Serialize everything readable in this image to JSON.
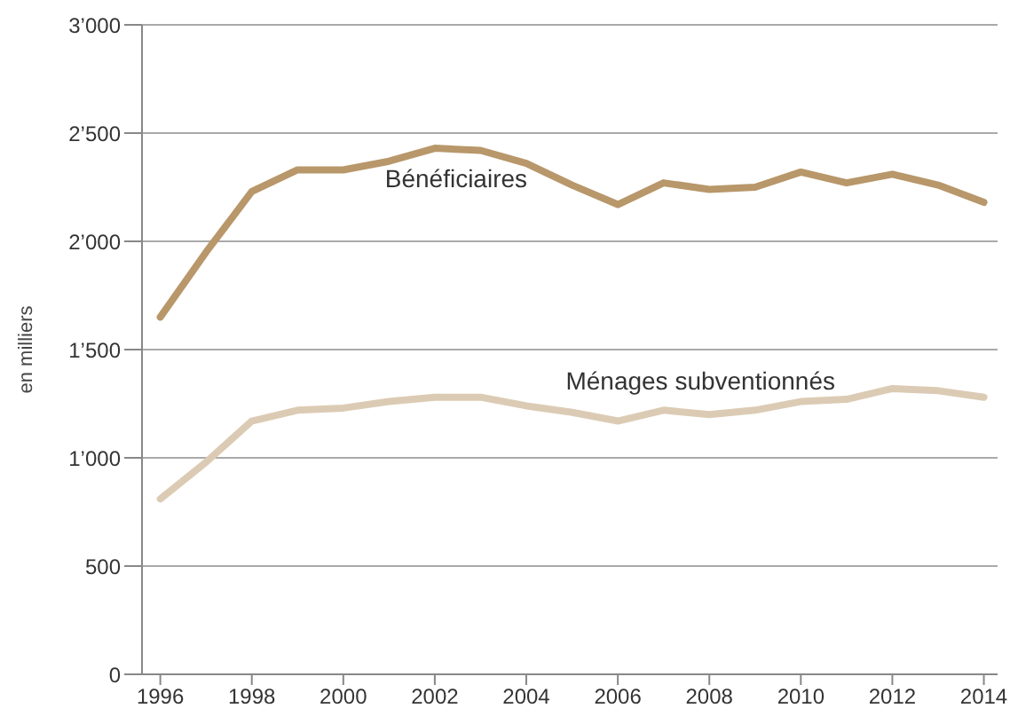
{
  "chart_data": {
    "type": "line",
    "ylabel": "en milliers",
    "x": [
      1996,
      1997,
      1998,
      1999,
      2000,
      2001,
      2002,
      2003,
      2004,
      2005,
      2006,
      2007,
      2008,
      2009,
      2010,
      2011,
      2012,
      2013,
      2014
    ],
    "series": [
      {
        "name": "Bénéficiaires",
        "color": "#b8976a",
        "values": [
          1650,
          1950,
          2230,
          2330,
          2330,
          2370,
          2430,
          2420,
          2360,
          2260,
          2170,
          2270,
          2240,
          2250,
          2320,
          2270,
          2310,
          2260,
          2180
        ]
      },
      {
        "name": "Ménages subventionnés",
        "color": "#dccbb4",
        "values": [
          810,
          980,
          1170,
          1220,
          1230,
          1260,
          1280,
          1280,
          1240,
          1210,
          1170,
          1220,
          1200,
          1220,
          1260,
          1270,
          1320,
          1310,
          1280
        ]
      }
    ],
    "xlim": [
      1995.6,
      2014.3
    ],
    "xticks": [
      1996,
      1998,
      2000,
      2002,
      2004,
      2006,
      2008,
      2010,
      2012,
      2014
    ],
    "ylim": [
      0,
      3000
    ],
    "yticks": [
      {
        "value": 0,
        "label": "0"
      },
      {
        "value": 500,
        "label": "500"
      },
      {
        "value": 1000,
        "label": "1’000"
      },
      {
        "value": 1500,
        "label": "1’500"
      },
      {
        "value": 2000,
        "label": "2’000"
      },
      {
        "value": 2500,
        "label": "2’500"
      },
      {
        "value": 3000,
        "label": "3’000"
      }
    ],
    "grid": "y",
    "marker": "none",
    "line_style": "solid"
  }
}
